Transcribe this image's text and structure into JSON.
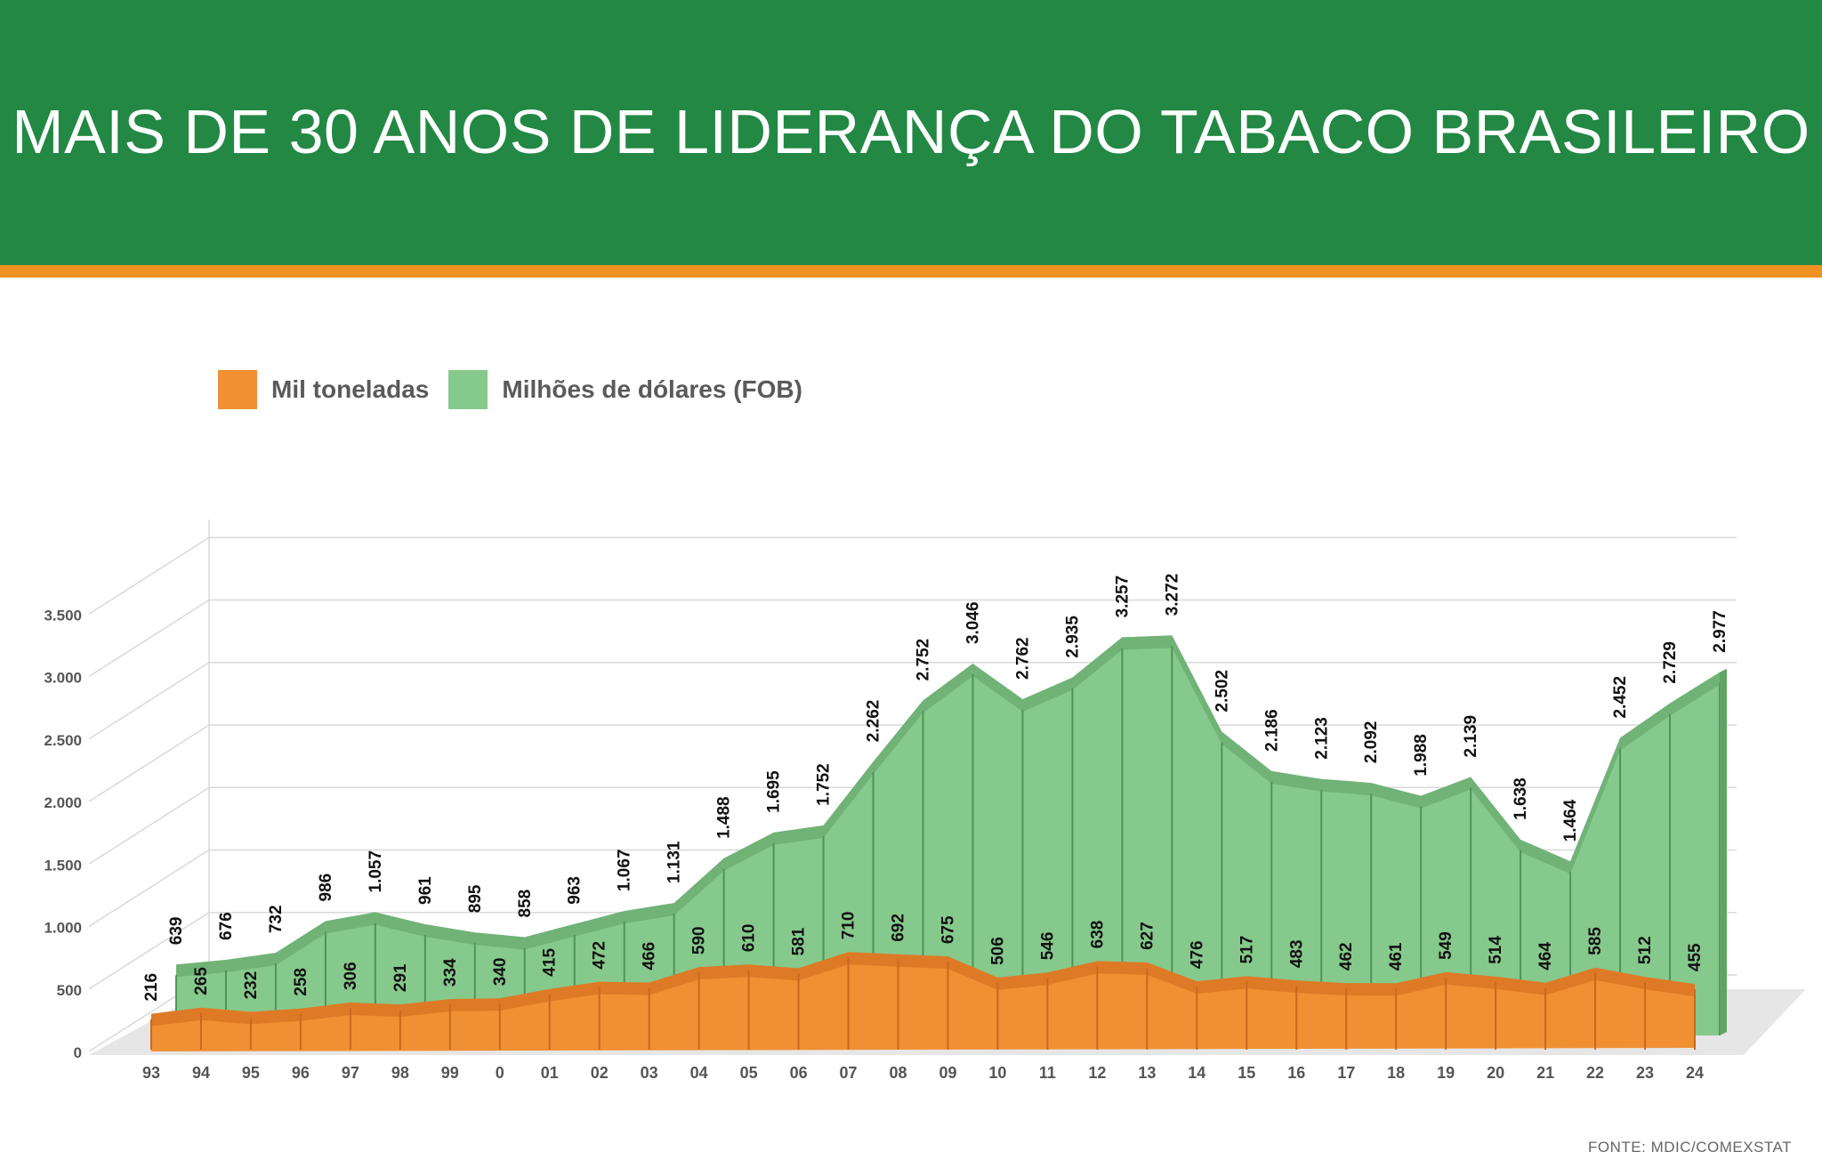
{
  "header": {
    "title": "MAIS DE 30 ANOS DE LIDERANÇA DO TABACO BRASILEIRO"
  },
  "source": "FONTE: MDIC/COMEXSTAT",
  "colors": {
    "header_green": "#228844",
    "accent_orange": "#ee9322",
    "usd_fill": "#86c98c",
    "usd_top": "#6aaa70",
    "tons_fill": "#f09033",
    "tons_top": "#de7a26"
  },
  "chart_data": {
    "type": "area",
    "title": "MAIS DE 30 ANOS DE LIDERANÇA DO TABACO BRASILEIRO",
    "xlabel": "",
    "ylabel": "",
    "ylim": [
      0,
      3500
    ],
    "yticks": [
      0,
      500,
      1000,
      1500,
      2000,
      2500,
      3000,
      3500
    ],
    "ytick_labels": [
      "0",
      "500",
      "1.000",
      "1.500",
      "2.000",
      "2.500",
      "3.000",
      "3.500"
    ],
    "categories": [
      "93",
      "94",
      "95",
      "96",
      "97",
      "98",
      "99",
      "0",
      "01",
      "02",
      "03",
      "04",
      "05",
      "06",
      "07",
      "08",
      "09",
      "10",
      "11",
      "12",
      "13",
      "14",
      "15",
      "16",
      "17",
      "18",
      "19",
      "20",
      "21",
      "22",
      "23",
      "24"
    ],
    "grid": true,
    "legend_position": "top-left",
    "series": [
      {
        "name": "Mil toneladas",
        "color": "#f09033",
        "values": [
          216,
          265,
          232,
          258,
          306,
          291,
          334,
          340,
          415,
          472,
          466,
          590,
          610,
          581,
          710,
          692,
          675,
          506,
          546,
          638,
          627,
          476,
          517,
          483,
          462,
          461,
          549,
          514,
          464,
          585,
          512,
          455
        ],
        "labels": [
          "216",
          "265",
          "232",
          "258",
          "306",
          "291",
          "334",
          "340",
          "415",
          "472",
          "466",
          "590",
          "610",
          "581",
          "710",
          "692",
          "675",
          "506",
          "546",
          "638",
          "627",
          "476",
          "517",
          "483",
          "462",
          "461",
          "549",
          "514",
          "464",
          "585",
          "512",
          "455"
        ]
      },
      {
        "name": "Milhões de dólares (FOB)",
        "color": "#86c98c",
        "values": [
          639,
          676,
          732,
          986,
          1057,
          961,
          895,
          858,
          963,
          1067,
          1131,
          1488,
          1695,
          1752,
          2262,
          2752,
          3046,
          2762,
          2935,
          3257,
          3272,
          2502,
          2186,
          2123,
          2092,
          1988,
          2139,
          1638,
          1464,
          2452,
          2729,
          2977
        ],
        "labels": [
          "639",
          "676",
          "732",
          "986",
          "1.057",
          "961",
          "895",
          "858",
          "963",
          "1.067",
          "1.131",
          "1.488",
          "1.695",
          "1.752",
          "2.262",
          "2.752",
          "3.046",
          "2.762",
          "2.935",
          "3.257",
          "3.272",
          "2.502",
          "2.186",
          "2.123",
          "2.092",
          "1.988",
          "2.139",
          "1.638",
          "1.464",
          "2.452",
          "2.729",
          "2.977"
        ]
      }
    ]
  }
}
